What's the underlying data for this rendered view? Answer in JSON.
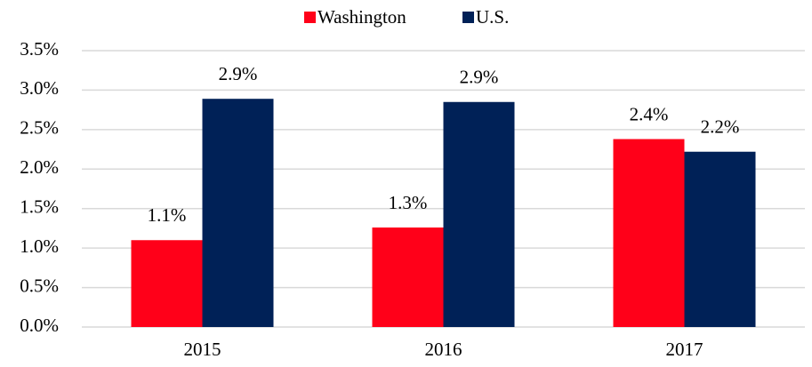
{
  "chart_data": {
    "type": "bar",
    "categories": [
      "2015",
      "2016",
      "2017"
    ],
    "series": [
      {
        "name": "Washington",
        "color": "#ff0019",
        "values": [
          1.1,
          1.26,
          2.38
        ],
        "value_labels": [
          "1.1%",
          "1.3%",
          "2.4%"
        ]
      },
      {
        "name": "U.S.",
        "color": "#002157",
        "values": [
          2.89,
          2.85,
          2.22
        ],
        "value_labels": [
          "2.9%",
          "2.9%",
          "2.2%"
        ]
      }
    ],
    "ylim": [
      0,
      3.5
    ],
    "yticks": [
      {
        "value": 0,
        "label": "0.0%"
      },
      {
        "value": 0.5,
        "label": "0.5%"
      },
      {
        "value": 1,
        "label": "1.0%"
      },
      {
        "value": 1.5,
        "label": "1.5%"
      },
      {
        "value": 2,
        "label": "2.0%"
      },
      {
        "value": 2.5,
        "label": "2.5%"
      },
      {
        "value": 3,
        "label": "3.0%"
      },
      {
        "value": 3.5,
        "label": "3.5%"
      }
    ],
    "grid": true,
    "legend": "top"
  }
}
